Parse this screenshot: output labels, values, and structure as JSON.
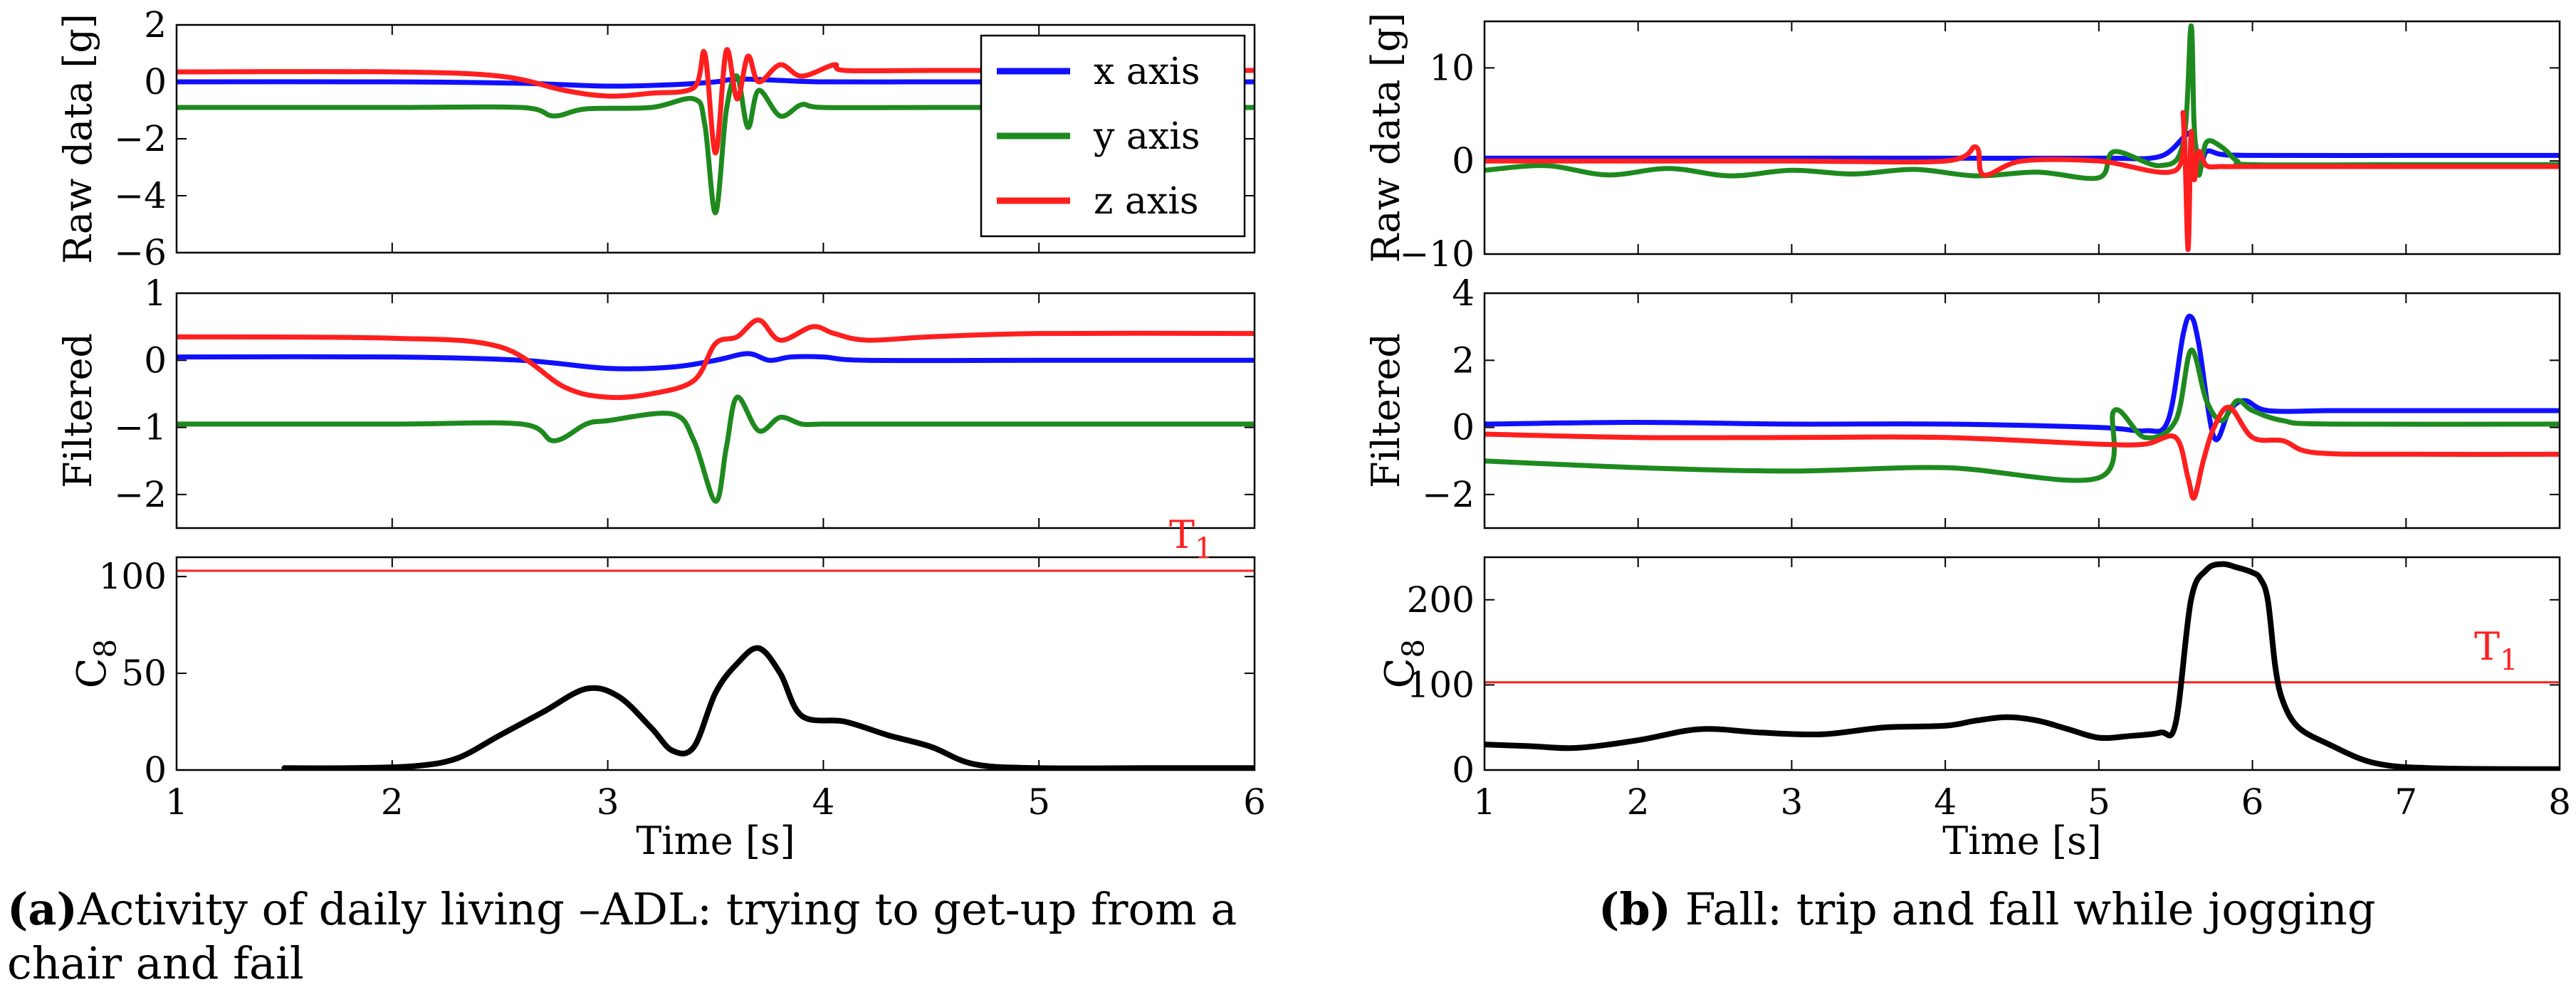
{
  "legend": {
    "x": {
      "label": "x axis",
      "color": "#1010ff"
    },
    "y": {
      "label": "y axis",
      "color": "#1e8a1e"
    },
    "z": {
      "label": "z axis",
      "color": "#ff1f1f"
    }
  },
  "threshold_color": "#ff1f1f",
  "c8_color": "#000000",
  "captions": {
    "a": {
      "label": "(a)",
      "text": "Activity of daily living –ADL: trying to get-up from a chair and fail"
    },
    "b": {
      "label": "(b)",
      "text": " Fall: trip and fall while jogging"
    }
  },
  "chart_data": [
    {
      "id": "a-raw",
      "type": "line",
      "ylabel": "Raw data [g]",
      "xlim": [
        1,
        6
      ],
      "ylim": [
        -6,
        2
      ],
      "xticks": [],
      "yticks": [
        2,
        0,
        -2,
        -4,
        -6
      ],
      "legend": "top-right",
      "series": [
        {
          "name": "x axis",
          "x": [
            1,
            2,
            2.6,
            3,
            3.3,
            3.5,
            3.6,
            3.8,
            4,
            4.5,
            5,
            6
          ],
          "y": [
            0,
            0,
            -0.05,
            -0.15,
            -0.1,
            0,
            0.1,
            0.05,
            0,
            0,
            0,
            0
          ]
        },
        {
          "name": "y axis",
          "x": [
            1,
            2,
            2.6,
            2.75,
            2.9,
            3.2,
            3.4,
            3.45,
            3.5,
            3.55,
            3.6,
            3.65,
            3.7,
            3.8,
            3.9,
            4,
            4.5,
            5,
            6
          ],
          "y": [
            -0.9,
            -0.9,
            -0.9,
            -1.2,
            -0.95,
            -0.9,
            -0.6,
            -1.5,
            -4.6,
            -1,
            0.2,
            -1.6,
            -0.3,
            -1.2,
            -0.8,
            -0.9,
            -0.9,
            -0.9,
            -0.9
          ]
        },
        {
          "name": "z axis",
          "x": [
            1,
            2,
            2.5,
            2.8,
            3,
            3.2,
            3.4,
            3.45,
            3.5,
            3.55,
            3.6,
            3.65,
            3.7,
            3.8,
            3.9,
            4.05,
            4.1,
            4.5,
            5,
            6
          ],
          "y": [
            0.35,
            0.35,
            0.2,
            -0.3,
            -0.5,
            -0.4,
            -0.2,
            1,
            -2.5,
            1.1,
            -0.6,
            0.9,
            0,
            0.6,
            0.2,
            0.6,
            0.4,
            0.4,
            0.4,
            0.4
          ]
        }
      ]
    },
    {
      "id": "a-filt",
      "type": "line",
      "ylabel": "Filtered",
      "xlim": [
        1,
        6
      ],
      "ylim": [
        -2.5,
        1
      ],
      "xticks": [],
      "yticks": [
        1,
        0,
        -1,
        -2
      ],
      "series": [
        {
          "name": "x axis",
          "x": [
            1,
            2,
            2.6,
            3,
            3.3,
            3.5,
            3.65,
            3.75,
            3.85,
            4,
            4.2,
            5,
            6
          ],
          "y": [
            0.05,
            0.05,
            0,
            -0.12,
            -0.1,
            0,
            0.1,
            0,
            0.05,
            0.05,
            0,
            0,
            0
          ]
        },
        {
          "name": "y axis",
          "x": [
            1,
            2,
            2.6,
            2.75,
            2.9,
            3,
            3.3,
            3.4,
            3.5,
            3.55,
            3.6,
            3.7,
            3.8,
            3.9,
            4,
            4.2,
            5,
            6
          ],
          "y": [
            -0.95,
            -0.95,
            -0.95,
            -1.2,
            -0.95,
            -0.9,
            -0.8,
            -1.2,
            -2.1,
            -1.3,
            -0.55,
            -1.05,
            -0.85,
            -0.95,
            -0.95,
            -0.95,
            -0.95,
            -0.95
          ]
        },
        {
          "name": "z axis",
          "x": [
            1,
            2,
            2.5,
            2.8,
            3,
            3.2,
            3.4,
            3.5,
            3.6,
            3.7,
            3.8,
            3.95,
            4.05,
            4.2,
            4.5,
            5,
            6
          ],
          "y": [
            0.35,
            0.33,
            0.2,
            -0.4,
            -0.55,
            -0.5,
            -0.3,
            0.25,
            0.35,
            0.6,
            0.3,
            0.5,
            0.4,
            0.3,
            0.35,
            0.4,
            0.4
          ]
        }
      ]
    },
    {
      "id": "a-c8",
      "type": "line",
      "ylabel": "C8",
      "xlabel": "Time [s]",
      "xlim": [
        1,
        6
      ],
      "ylim": [
        0,
        110
      ],
      "xticks": [
        1,
        2,
        3,
        4,
        5,
        6
      ],
      "yticks": [
        100,
        50,
        0
      ],
      "threshold": {
        "value": 103,
        "label": "T1"
      },
      "series": [
        {
          "name": "C8",
          "x": [
            1.5,
            1.8,
            2.1,
            2.3,
            2.5,
            2.7,
            2.9,
            3.05,
            3.2,
            3.3,
            3.4,
            3.5,
            3.6,
            3.7,
            3.8,
            3.9,
            4.1,
            4.3,
            4.5,
            4.7,
            5,
            5.5,
            6
          ],
          "y": [
            1,
            1,
            2,
            6,
            18,
            30,
            42,
            38,
            22,
            10,
            12,
            40,
            55,
            63,
            50,
            28,
            25,
            18,
            12,
            3,
            1,
            1,
            1
          ]
        }
      ]
    },
    {
      "id": "b-raw",
      "type": "line",
      "ylabel": "Raw data [g]",
      "xlim": [
        1,
        8
      ],
      "ylim": [
        -10,
        15
      ],
      "xticks": [],
      "yticks": [
        10,
        0,
        -10
      ],
      "series": [
        {
          "name": "x axis",
          "x": [
            1,
            2,
            3,
            4,
            5,
            5.4,
            5.6,
            5.65,
            5.7,
            5.8,
            6,
            7,
            8
          ],
          "y": [
            0.3,
            0.3,
            0.3,
            0.3,
            0.3,
            0.5,
            3,
            -1,
            1,
            0.7,
            0.6,
            0.6,
            0.6
          ]
        },
        {
          "name": "y axis",
          "x": [
            1,
            1.4,
            1.8,
            2.2,
            2.6,
            3,
            3.4,
            3.8,
            4.2,
            4.6,
            5,
            5.1,
            5.4,
            5.55,
            5.6,
            5.62,
            5.65,
            5.7,
            5.8,
            5.9,
            6,
            7,
            8
          ],
          "y": [
            -1,
            -0.5,
            -1.5,
            -0.8,
            -1.6,
            -1,
            -1.4,
            -0.9,
            -1.6,
            -1.2,
            -1.8,
            1,
            -0.5,
            2,
            14.5,
            4,
            -1.5,
            2,
            1.5,
            0,
            -0.4,
            -0.4,
            -0.4
          ]
        },
        {
          "name": "z axis",
          "x": [
            1,
            2,
            3,
            4,
            4.2,
            4.25,
            4.5,
            5,
            5.5,
            5.55,
            5.58,
            5.6,
            5.62,
            5.65,
            5.7,
            5.8,
            6,
            7,
            8
          ],
          "y": [
            0,
            0,
            0,
            0,
            1.5,
            -1.5,
            0,
            0,
            -1,
            5,
            -9.5,
            3,
            -2,
            1,
            -0.5,
            -0.6,
            -0.6,
            -0.6,
            -0.6
          ]
        }
      ]
    },
    {
      "id": "b-filt",
      "type": "line",
      "ylabel": "Filtered",
      "xlim": [
        1,
        8
      ],
      "ylim": [
        -3,
        4
      ],
      "xticks": [],
      "yticks": [
        4,
        2,
        0,
        -2
      ],
      "series": [
        {
          "name": "x axis",
          "x": [
            1,
            2,
            3,
            4,
            5,
            5.3,
            5.45,
            5.55,
            5.6,
            5.65,
            5.75,
            5.85,
            5.95,
            6.1,
            6.5,
            7,
            8
          ],
          "y": [
            0.1,
            0.15,
            0.1,
            0.1,
            0,
            -0.1,
            0.2,
            2.8,
            3.3,
            2.5,
            -0.3,
            0.5,
            0.8,
            0.5,
            0.5,
            0.5,
            0.5
          ]
        },
        {
          "name": "y axis",
          "x": [
            1,
            2,
            3,
            4,
            5,
            5.1,
            5.3,
            5.5,
            5.6,
            5.7,
            5.8,
            5.9,
            6,
            6.2,
            6.5,
            8
          ],
          "y": [
            -1,
            -1.2,
            -1.3,
            -1.2,
            -1.5,
            0.5,
            -0.3,
            0.2,
            2.3,
            0.8,
            0.2,
            0.8,
            0.5,
            0.2,
            0.1,
            0.1
          ]
        },
        {
          "name": "z axis",
          "x": [
            1,
            2,
            3,
            4,
            5,
            5.3,
            5.5,
            5.58,
            5.62,
            5.68,
            5.75,
            5.85,
            6,
            6.2,
            6.4,
            7,
            8
          ],
          "y": [
            -0.2,
            -0.3,
            -0.3,
            -0.3,
            -0.5,
            -0.5,
            -0.3,
            -1.5,
            -2.1,
            -1,
            0,
            0.6,
            -0.3,
            -0.4,
            -0.75,
            -0.8,
            -0.8
          ]
        }
      ]
    },
    {
      "id": "b-c8",
      "type": "line",
      "ylabel": "C8",
      "xlabel": "Time [s]",
      "xlim": [
        1,
        8
      ],
      "ylim": [
        0,
        250
      ],
      "xticks": [
        1,
        2,
        3,
        4,
        5,
        6,
        7,
        8
      ],
      "yticks": [
        200,
        100,
        0
      ],
      "threshold": {
        "value": 103,
        "label": "T1"
      },
      "series": [
        {
          "name": "C8",
          "x": [
            1,
            1.3,
            1.6,
            2,
            2.4,
            2.8,
            3.2,
            3.6,
            4,
            4.2,
            4.4,
            4.6,
            4.8,
            5,
            5.2,
            5.4,
            5.5,
            5.6,
            5.7,
            5.8,
            5.9,
            6,
            6.05,
            6.1,
            6.15,
            6.2,
            6.3,
            6.5,
            6.8,
            7.2,
            8
          ],
          "y": [
            30,
            28,
            26,
            35,
            48,
            44,
            42,
            50,
            52,
            58,
            62,
            58,
            48,
            38,
            40,
            44,
            55,
            200,
            235,
            242,
            238,
            232,
            225,
            200,
            120,
            80,
            50,
            30,
            8,
            2,
            1
          ]
        }
      ]
    }
  ]
}
